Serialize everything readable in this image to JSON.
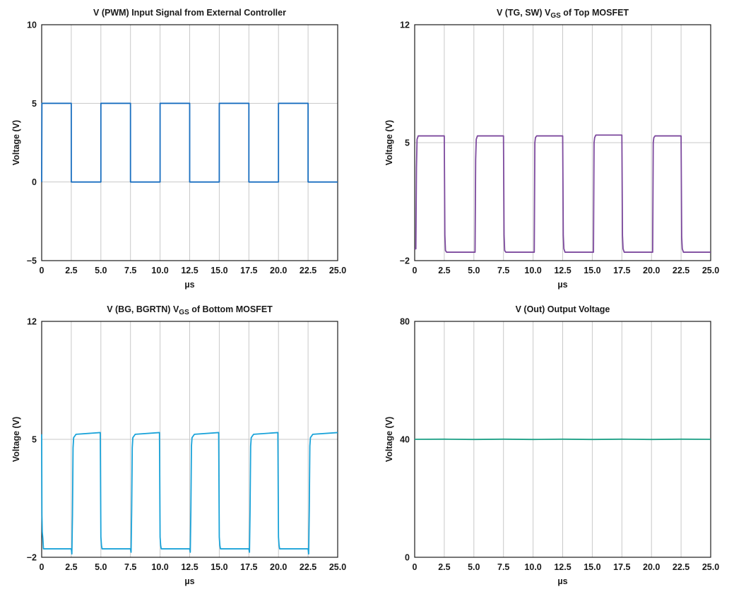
{
  "chart_data": [
    {
      "type": "line",
      "title": "V (PWM) Input Signal from External Controller",
      "title_sub": "",
      "title_tail": "",
      "xlabel": "µs",
      "ylabel": "Voltage (V)",
      "xlim": [
        0,
        25
      ],
      "ylim": [
        -5,
        10
      ],
      "xticks": [
        0,
        2.5,
        5,
        7.5,
        10,
        12.5,
        15,
        17.5,
        20,
        22.5,
        25
      ],
      "xtick_labels": [
        "0",
        "2.5",
        "5.0",
        "7.5",
        "10.0",
        "12.5",
        "15.0",
        "17.5",
        "20.0",
        "22.5",
        "25.0"
      ],
      "yticks": [
        -5,
        0,
        5,
        10
      ],
      "ytick_labels": [
        "−5",
        "0",
        "5",
        "10"
      ],
      "hgrid": [
        0,
        5
      ],
      "color": "#1a6fc0",
      "series": [
        {
          "x": [
            0,
            0.02,
            2.5,
            2.5,
            5,
            5,
            7.5,
            7.5,
            10,
            10,
            12.5,
            12.5,
            15,
            15,
            17.5,
            17.5,
            20,
            20,
            22.5,
            22.5,
            25
          ],
          "y": [
            0,
            5,
            5,
            0,
            0,
            5,
            5,
            0,
            0,
            5,
            5,
            0,
            0,
            5,
            5,
            0,
            0,
            5,
            5,
            0,
            0
          ]
        }
      ]
    },
    {
      "type": "line",
      "title": "V (TG, SW) V",
      "title_sub": "GS",
      "title_tail": " of Top MOSFET",
      "xlabel": "µs",
      "ylabel": "Voltage (V)",
      "xlim": [
        0,
        25
      ],
      "ylim": [
        -2,
        12
      ],
      "xticks": [
        0,
        2.5,
        5,
        7.5,
        10,
        12.5,
        15,
        17.5,
        20,
        22.5,
        25
      ],
      "xtick_labels": [
        "0",
        "2.5",
        "5.0",
        "7.5",
        "10.0",
        "12.5",
        "15.0",
        "17.5",
        "20.0",
        "22.5",
        "25.0"
      ],
      "yticks": [
        -2,
        5,
        12
      ],
      "ytick_labels": [
        "−2",
        "5",
        "12"
      ],
      "hgrid": [
        5
      ],
      "color": "#7d4a9e",
      "series": [
        {
          "x": [
            0,
            0.1,
            0.15,
            0.2,
            0.3,
            0.5,
            2.5,
            2.55,
            2.6,
            2.7,
            5.1,
            5.15,
            5.2,
            5.3,
            7.5,
            7.55,
            7.6,
            7.7,
            10.1,
            10.15,
            10.2,
            10.3,
            12.5,
            12.55,
            12.6,
            12.7,
            15.1,
            15.15,
            15.2,
            15.3,
            17.5,
            17.55,
            17.6,
            17.7,
            20.1,
            20.15,
            20.2,
            20.3,
            22.5,
            22.55,
            22.6,
            22.7,
            25
          ],
          "y": [
            -1.3,
            -1.3,
            3.5,
            5.2,
            5.4,
            5.4,
            5.4,
            -0.5,
            -1.4,
            -1.5,
            -1.5,
            4,
            5.2,
            5.4,
            5.4,
            -0.5,
            -1.4,
            -1.5,
            -1.5,
            5.0,
            5.3,
            5.4,
            5.4,
            -0.5,
            -1.3,
            -1.5,
            -1.5,
            5.0,
            5.3,
            5.45,
            5.45,
            -0.5,
            -1.3,
            -1.5,
            -1.5,
            5.0,
            5.3,
            5.4,
            5.4,
            -0.6,
            -1.3,
            -1.5,
            -1.5
          ]
        }
      ]
    },
    {
      "type": "line",
      "title": "V (BG, BGRTN) V",
      "title_sub": "GS",
      "title_tail": " of Bottom MOSFET",
      "xlabel": "µs",
      "ylabel": "Voltage (V)",
      "xlim": [
        0,
        25
      ],
      "ylim": [
        -2,
        12
      ],
      "xticks": [
        0,
        2.5,
        5,
        7.5,
        10,
        12.5,
        15,
        17.5,
        20,
        22.5,
        25
      ],
      "xtick_labels": [
        "0",
        "2.5",
        "5.0",
        "7.5",
        "10.0",
        "12.5",
        "15.0",
        "17.5",
        "20.0",
        "22.5",
        "25.0"
      ],
      "yticks": [
        -2,
        5,
        12
      ],
      "ytick_labels": [
        "−2",
        "5",
        "12"
      ],
      "hgrid": [
        5
      ],
      "color": "#1aa3d9",
      "series": [
        {
          "x": [
            0,
            0.02,
            0.05,
            0.1,
            0.15,
            0.3,
            2.5,
            2.55,
            2.6,
            2.65,
            2.7,
            2.9,
            4.95,
            5.0,
            5.05,
            5.1,
            5.2,
            7.5,
            7.55,
            7.6,
            7.65,
            7.7,
            7.9,
            9.95,
            10.0,
            10.05,
            10.1,
            10.2,
            12.5,
            12.55,
            12.6,
            12.65,
            12.7,
            12.9,
            14.95,
            15.0,
            15.05,
            15.1,
            15.2,
            17.5,
            17.55,
            17.6,
            17.65,
            17.7,
            17.9,
            19.95,
            20.0,
            20.05,
            20.1,
            20.2,
            22.5,
            22.55,
            22.6,
            22.65,
            22.7,
            22.9,
            25
          ],
          "y": [
            5.3,
            0.5,
            -0.5,
            -0.9,
            -1.5,
            -1.5,
            -1.5,
            -1.8,
            0.5,
            4.5,
            5.1,
            5.3,
            5.4,
            -0.8,
            -1.3,
            -1.5,
            -1.5,
            -1.5,
            -1.7,
            0.8,
            4.5,
            5.1,
            5.3,
            5.4,
            -0.8,
            -1.3,
            -1.5,
            -1.5,
            -1.5,
            -1.7,
            0.8,
            4.6,
            5.1,
            5.3,
            5.4,
            -0.8,
            -1.3,
            -1.5,
            -1.5,
            -1.5,
            -1.7,
            0.8,
            4.6,
            5.1,
            5.3,
            5.4,
            -0.8,
            -1.3,
            -1.5,
            -1.5,
            -1.5,
            -1.8,
            0.8,
            4.6,
            5.1,
            5.3,
            5.4
          ]
        }
      ]
    },
    {
      "type": "line",
      "title": "V (Out) Output Voltage",
      "title_sub": "",
      "title_tail": "",
      "xlabel": "µs",
      "ylabel": "Voltage (V)",
      "xlim": [
        0,
        25
      ],
      "ylim": [
        0,
        80
      ],
      "xticks": [
        0,
        2.5,
        5,
        7.5,
        10,
        12.5,
        15,
        17.5,
        20,
        22.5,
        25
      ],
      "xtick_labels": [
        "0",
        "2.5",
        "5.0",
        "7.5",
        "10.0",
        "12.5",
        "15.0",
        "17.5",
        "20.0",
        "22.5",
        "25.0"
      ],
      "yticks": [
        0,
        40,
        80
      ],
      "ytick_labels": [
        "0",
        "40",
        "80"
      ],
      "hgrid": [
        40
      ],
      "color": "#1fa187",
      "series": [
        {
          "x": [
            0,
            2.5,
            5,
            7.5,
            10,
            12.5,
            15,
            17.5,
            20,
            22.5,
            25
          ],
          "y": [
            40,
            40.05,
            39.95,
            40.05,
            39.95,
            40.05,
            39.95,
            40.05,
            39.95,
            40.05,
            40
          ]
        }
      ]
    }
  ]
}
